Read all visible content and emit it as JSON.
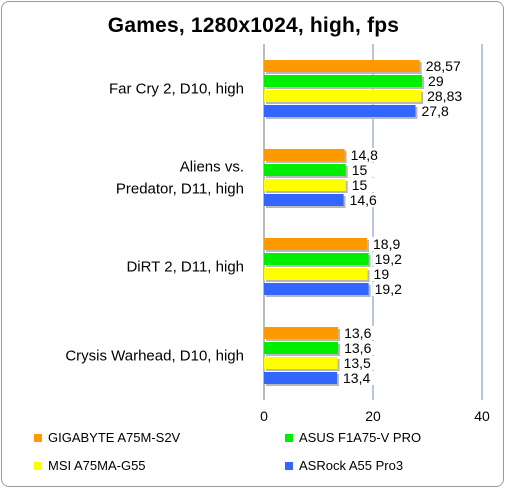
{
  "chart_data": {
    "type": "bar",
    "orientation": "horizontal",
    "title": "Games, 1280x1024, high, fps",
    "categories": [
      "Far Cry 2, D10, high",
      "Aliens vs. Predator, D11, high",
      "DiRT 2, D11, high",
      "Crysis Warhead, D10, high"
    ],
    "series": [
      {
        "name": "GIGABYTE A75M-S2V",
        "color": "#ff9900",
        "values": [
          28.57,
          14.8,
          18.9,
          13.6
        ],
        "labels": [
          "28,57",
          "14,8",
          "18,9",
          "13,6"
        ]
      },
      {
        "name": "ASUS F1A75-V PRO",
        "color": "#00ee00",
        "values": [
          29,
          15,
          19.2,
          13.6
        ],
        "labels": [
          "29",
          "15",
          "19,2",
          "13,6"
        ]
      },
      {
        "name": "MSI A75MA-G55",
        "color": "#ffff00",
        "values": [
          28.83,
          15,
          19,
          13.5
        ],
        "labels": [
          "28,83",
          "15",
          "19",
          "13,5"
        ]
      },
      {
        "name": "ASRock A55 Pro3",
        "color": "#3366ff",
        "values": [
          27.8,
          14.6,
          19.2,
          13.4
        ],
        "labels": [
          "27,8",
          "14,6",
          "19,2",
          "13,4"
        ]
      }
    ],
    "xlim": [
      0,
      40
    ],
    "xticks": [
      "0",
      "20",
      "40"
    ],
    "grid": true,
    "legend_position": "bottom"
  }
}
